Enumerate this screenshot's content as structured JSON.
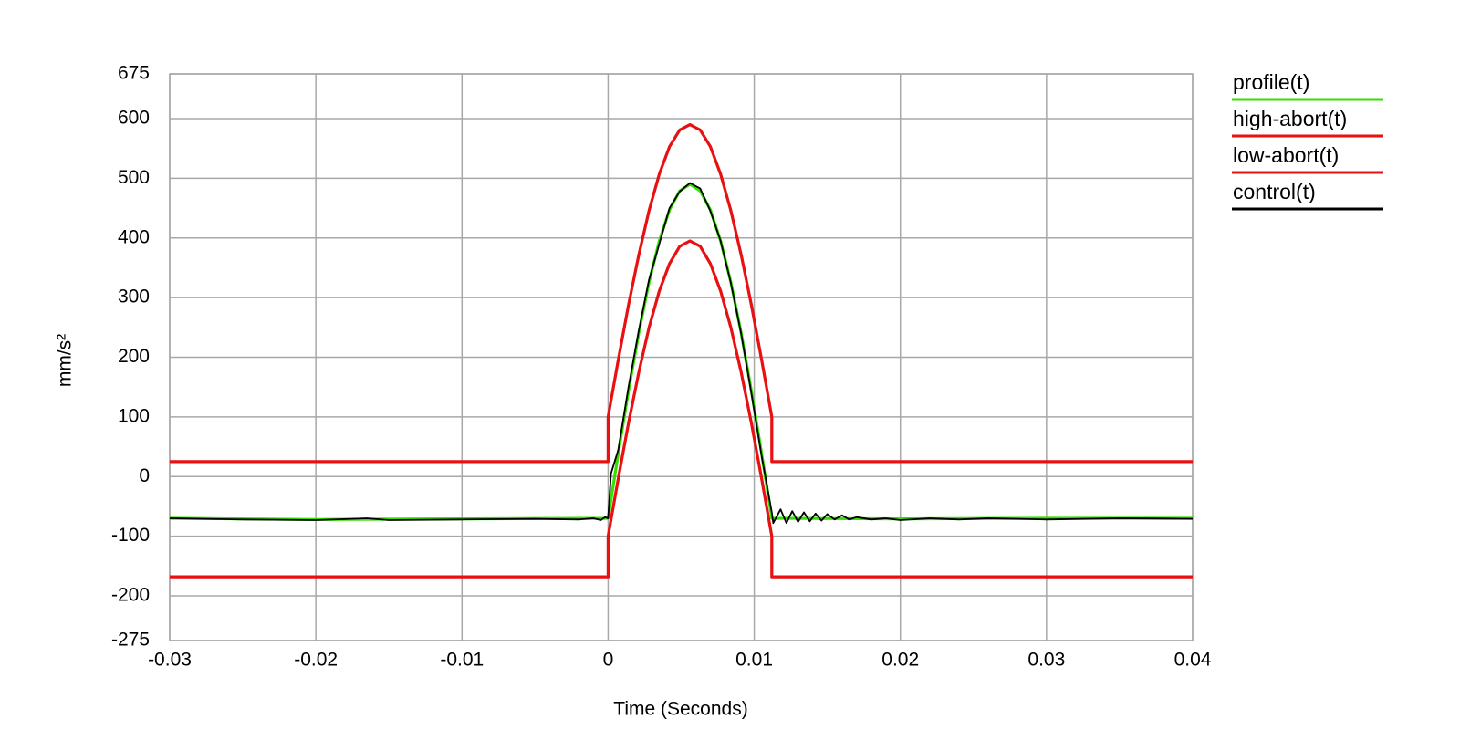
{
  "chart_data": {
    "type": "line",
    "xlabel": "Time (Seconds)",
    "ylabel": "mm/s²",
    "xlim": [
      -0.03,
      0.04
    ],
    "xticks": [
      -0.03,
      -0.02,
      -0.01,
      0,
      0.01,
      0.02,
      0.03,
      0.04
    ],
    "ylim": [
      -275,
      675
    ],
    "yticks": [
      -275,
      -200,
      -100,
      0,
      100,
      200,
      300,
      400,
      500,
      600,
      675
    ],
    "grid": true,
    "series": [
      {
        "name": "profile(t)",
        "color": "#33e000",
        "x": [
          -0.03,
          -0.02,
          -0.01,
          0,
          0.0007,
          0.0014,
          0.0021,
          0.0028,
          0.0035,
          0.0042,
          0.0049,
          0.0056,
          0.0063,
          0.007,
          0.0077,
          0.0084,
          0.0091,
          0.0098,
          0.0105,
          0.0112,
          0.02,
          0.03,
          0.04
        ],
        "values": [
          -70,
          -72,
          -71,
          -70,
          39,
          144,
          241,
          326,
          395,
          447,
          479,
          490,
          479,
          447,
          395,
          326,
          241,
          144,
          39,
          -70,
          -71,
          -70,
          -70
        ]
      },
      {
        "name": "high-abort(t)",
        "color": "#e81010",
        "x": [
          -0.03,
          0,
          0,
          0.0007,
          0.0014,
          0.0021,
          0.0028,
          0.0035,
          0.0042,
          0.0049,
          0.0056,
          0.0063,
          0.007,
          0.0077,
          0.0084,
          0.0091,
          0.0098,
          0.0105,
          0.0112,
          0.0112,
          0.04
        ],
        "values": [
          25,
          25,
          100,
          196,
          288,
          372,
          446,
          507,
          553,
          581,
          590,
          581,
          553,
          507,
          446,
          372,
          288,
          196,
          100,
          25,
          25
        ]
      },
      {
        "name": "low-abort(t)",
        "color": "#e81010",
        "x": [
          -0.03,
          0,
          0,
          0.0007,
          0.0014,
          0.0021,
          0.0028,
          0.0035,
          0.0042,
          0.0049,
          0.0056,
          0.0063,
          0.007,
          0.0077,
          0.0084,
          0.0091,
          0.0098,
          0.0105,
          0.0112,
          0.0112,
          0.04
        ],
        "values": [
          -168,
          -168,
          -100,
          -3,
          90,
          175,
          250,
          311,
          357,
          386,
          395,
          386,
          357,
          311,
          250,
          175,
          90,
          -3,
          -100,
          -168,
          -168
        ]
      },
      {
        "name": "control(t)",
        "color": "#000000",
        "x": [
          -0.03,
          -0.025,
          -0.02,
          -0.0165,
          -0.015,
          -0.01,
          -0.005,
          -0.002,
          -0.001,
          -0.0005,
          -0.0002,
          0,
          0.0002,
          0.0007,
          0.0014,
          0.0021,
          0.0028,
          0.0035,
          0.0042,
          0.0049,
          0.0056,
          0.0063,
          0.007,
          0.0077,
          0.0084,
          0.0091,
          0.0098,
          0.0105,
          0.0112,
          0.0113,
          0.0118,
          0.0122,
          0.0126,
          0.013,
          0.0134,
          0.0138,
          0.0142,
          0.0146,
          0.015,
          0.0155,
          0.016,
          0.0165,
          0.017,
          0.018,
          0.019,
          0.02,
          0.022,
          0.024,
          0.026,
          0.03,
          0.035,
          0.04
        ],
        "values": [
          -70,
          -72,
          -73,
          -70,
          -73,
          -72,
          -71,
          -72,
          -70,
          -73,
          -68,
          -70,
          5,
          45,
          150,
          245,
          330,
          390,
          450,
          478,
          492,
          483,
          445,
          395,
          325,
          240,
          140,
          35,
          -60,
          -78,
          -55,
          -78,
          -58,
          -76,
          -60,
          -75,
          -62,
          -74,
          -63,
          -72,
          -65,
          -72,
          -68,
          -72,
          -70,
          -73,
          -70,
          -72,
          -70,
          -72,
          -70,
          -71
        ]
      }
    ]
  }
}
